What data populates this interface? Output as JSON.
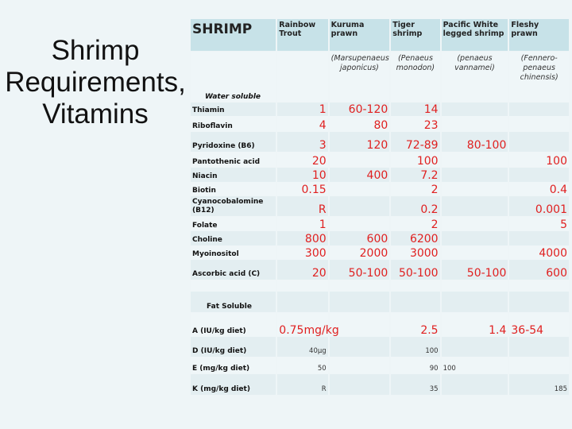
{
  "slide_title": "Shrimp Requirements, Vitamins",
  "table": {
    "headers": [
      "SHRIMP",
      "Rainbow Trout",
      "Kuruma prawn",
      "Tiger shrimp",
      "Pacific White legged shrimp",
      "Fleshy prawn"
    ],
    "species": [
      "",
      "",
      "(Marsupenaeus japonicus)",
      "(Penaeus monodon)",
      "(penaeus vannamei)",
      "(Fennero-penaeus chinensis)"
    ],
    "rows": [
      {
        "label": "Water soluble",
        "type": "section",
        "cells": [
          "",
          "",
          "",
          "",
          ""
        ]
      },
      {
        "label": "Thiamin",
        "cells": [
          "1",
          "60-120",
          "14",
          "",
          ""
        ]
      },
      {
        "label": "Riboflavin",
        "cells": [
          "4",
          "80",
          "23",
          "",
          ""
        ]
      },
      {
        "label": "Pyridoxine (B6)",
        "cells": [
          "3",
          "120",
          "72-89",
          "80-100",
          ""
        ]
      },
      {
        "label": "Pantothenic acid",
        "cells": [
          "20",
          "",
          "100",
          "",
          "100"
        ]
      },
      {
        "label": "Niacin",
        "cells": [
          "10",
          "400",
          "7.2",
          "",
          ""
        ]
      },
      {
        "label": "Biotin",
        "cells": [
          "0.15",
          "",
          "2",
          "",
          "0.4"
        ]
      },
      {
        "label": "Cyanocobalomine (B12)",
        "cells": [
          "R",
          "",
          "0.2",
          "",
          "0.001"
        ]
      },
      {
        "label": "Folate",
        "cells": [
          "1",
          "",
          "2",
          "",
          "5"
        ]
      },
      {
        "label": "Choline",
        "cells": [
          "800",
          "600",
          "6200",
          "",
          ""
        ]
      },
      {
        "label": "Myoinositol",
        "cells": [
          "300",
          "2000",
          "3000",
          "",
          "4000"
        ]
      },
      {
        "label": "Ascorbic acid (C)",
        "cells": [
          "20",
          "50-100",
          "50-100",
          "50-100",
          "600"
        ]
      },
      {
        "label": "",
        "type": "blank",
        "cells": [
          "",
          "",
          "",
          "",
          ""
        ]
      },
      {
        "label": "Fat Soluble",
        "type": "section2",
        "cells": [
          "",
          "",
          "",
          "",
          ""
        ]
      },
      {
        "label": "A (IU/kg diet)",
        "cells": [
          "0.75mg/kg",
          "",
          "2.5",
          "1.4",
          "36-54"
        ]
      },
      {
        "label": "D (IU/kg diet)",
        "type": "small",
        "cells": [
          "40µg",
          "",
          "100",
          "",
          ""
        ]
      },
      {
        "label": "E (mg/kg diet)",
        "type": "small",
        "cells": [
          "50",
          "",
          "90",
          "100",
          ""
        ]
      },
      {
        "label": "K (mg/kg diet)",
        "type": "small",
        "cells": [
          "R",
          "",
          "35",
          "",
          "185"
        ]
      }
    ]
  },
  "colors": {
    "value_red": "#e02020",
    "header_bg": "#c7e2e8",
    "background": "#eef5f7"
  }
}
